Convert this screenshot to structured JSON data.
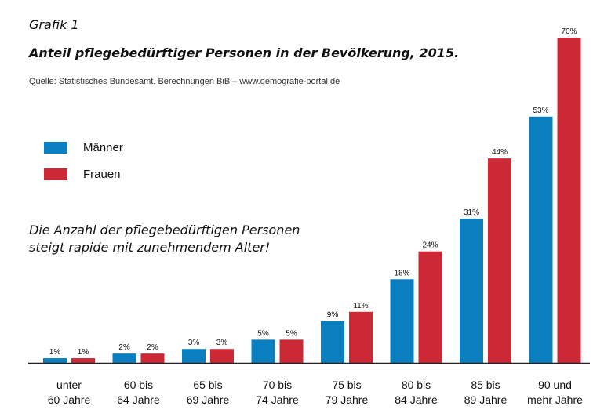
{
  "header": {
    "figure_label": "Grafik 1",
    "title": "Anteil pflegebedürftiger Personen in der Bevölkerung, 2015.",
    "source": "Quelle: Statistisches Bundesamt, Berechnungen BiB – www.demografie-portal.de"
  },
  "legend": {
    "men": "Männer",
    "women": "Frauen"
  },
  "annotation": {
    "line1": "Die Anzahl der pflegebedürftigen Personen",
    "line2": "steigt rapide mit zunehmendem Alter!"
  },
  "colors": {
    "men": "#0a7fc0",
    "women": "#cc2836"
  },
  "chart_data": {
    "type": "bar",
    "title": "Anteil pflegebedürftiger Personen in der Bevölkerung, 2015.",
    "categories": [
      [
        "unter",
        "60 Jahre"
      ],
      [
        "60 bis",
        "64 Jahre"
      ],
      [
        "65 bis",
        "69 Jahre"
      ],
      [
        "70 bis",
        "74 Jahre"
      ],
      [
        "75 bis",
        "79 Jahre"
      ],
      [
        "80 bis",
        "84 Jahre"
      ],
      [
        "85 bis",
        "89 Jahre"
      ],
      [
        "90 und",
        "mehr Jahre"
      ]
    ],
    "series": [
      {
        "name": "Männer",
        "values": [
          1,
          2,
          3,
          5,
          9,
          18,
          31,
          53
        ],
        "labels": [
          "1%",
          "2%",
          "3%",
          "5%",
          "9%",
          "18%",
          "31%",
          "53%"
        ]
      },
      {
        "name": "Frauen",
        "values": [
          1,
          2,
          3,
          5,
          11,
          24,
          44,
          70
        ],
        "labels": [
          "1%",
          "2%",
          "3%",
          "5%",
          "11%",
          "24%",
          "44%",
          "70%"
        ]
      }
    ],
    "ylim": [
      0,
      70
    ],
    "grid": false,
    "legend_position": "left"
  }
}
